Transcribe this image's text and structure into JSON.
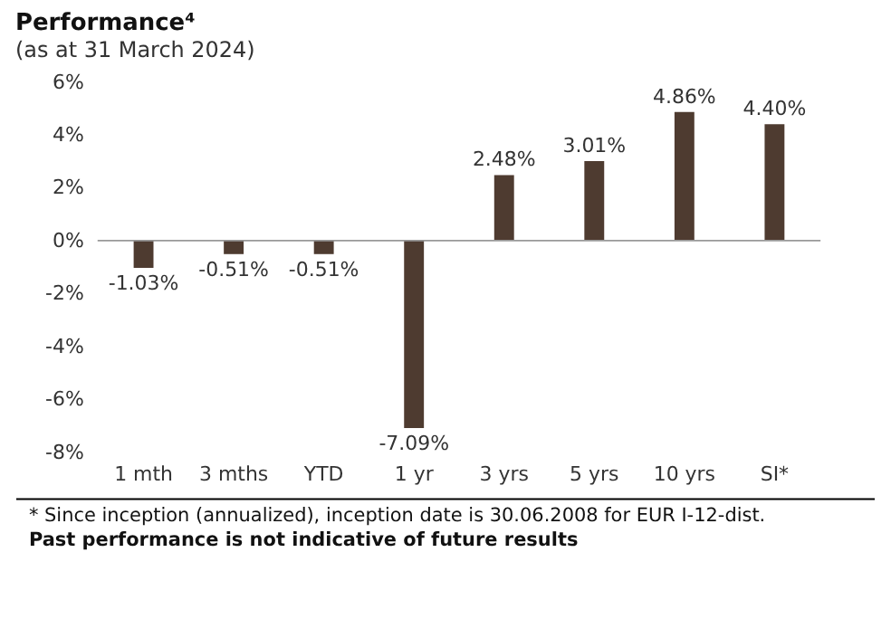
{
  "chart_data": {
    "type": "bar",
    "title": "Performance⁴",
    "subtitle": "(as at 31 March 2024)",
    "categories": [
      "1 mth",
      "3 mths",
      "YTD",
      "1 yr",
      "3 yrs",
      "5 yrs",
      "10 yrs",
      "SI*"
    ],
    "values": [
      -1.03,
      -0.51,
      -0.51,
      -7.09,
      2.48,
      3.01,
      4.86,
      4.4
    ],
    "value_labels": [
      "-1.03%",
      "-0.51%",
      "-0.51%",
      "-7.09%",
      "2.48%",
      "3.01%",
      "4.86%",
      "4.40%"
    ],
    "color": "#4e3b30",
    "ylim": [
      -8,
      6
    ],
    "yticks": [
      {
        "value": -8,
        "label": "-8%"
      },
      {
        "value": -6,
        "label": "-6%"
      },
      {
        "value": -4,
        "label": "-4%"
      },
      {
        "value": -2,
        "label": "-2%"
      },
      {
        "value": 0,
        "label": "0%"
      },
      {
        "value": 2,
        "label": "2%"
      },
      {
        "value": 4,
        "label": "4%"
      },
      {
        "value": 6,
        "label": "6%"
      }
    ],
    "ref_lines": [
      {
        "axis": "y",
        "value": 0,
        "color": "#999999"
      }
    ],
    "grid": false,
    "annotations": [
      "* Since inception (annualized), inception date is 30.06.2008 for EUR I-12-dist.",
      "Past performance is not indicative of future results"
    ]
  }
}
